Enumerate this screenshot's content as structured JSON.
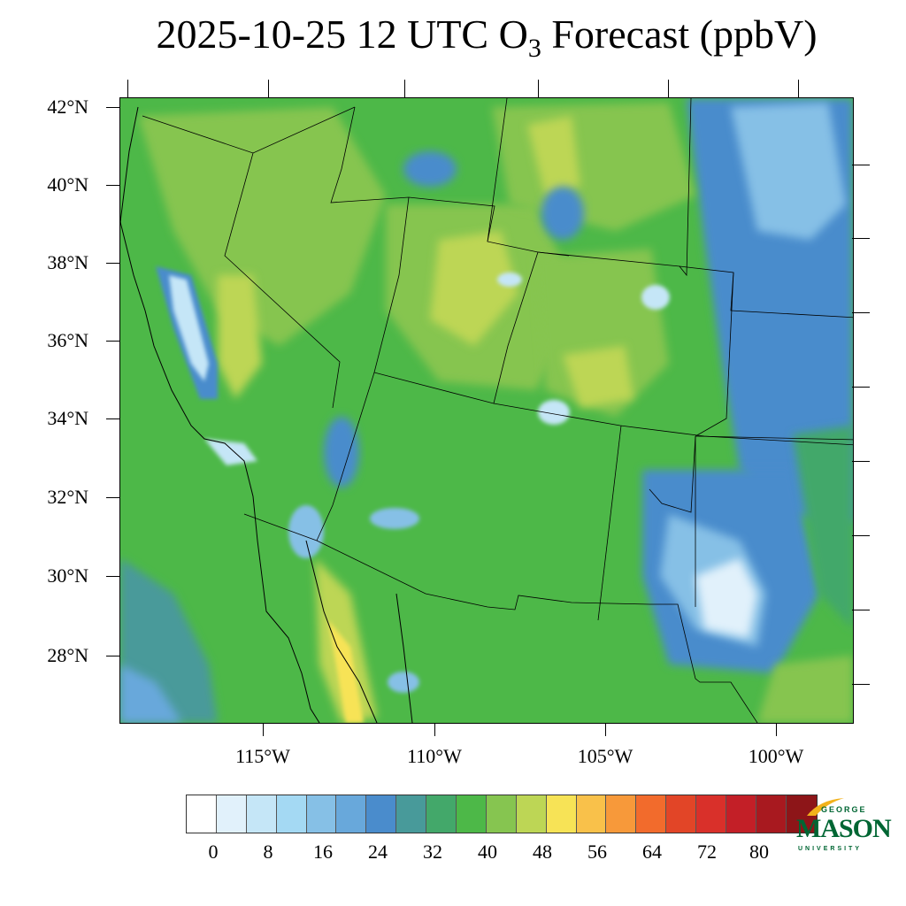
{
  "title": {
    "main": "2025-10-25 12 UTC O",
    "subscript": "3",
    "suffix": " Forecast (ppbV)"
  },
  "map": {
    "region": "Southwestern United States and northern Mexico",
    "latitude_labels": [
      "42°N",
      "40°N",
      "38°N",
      "36°N",
      "34°N",
      "32°N",
      "30°N",
      "28°N"
    ],
    "longitude_labels": [
      "115°W",
      "110°W",
      "105°W",
      "100°W"
    ]
  },
  "colorbar": {
    "colors": [
      "#ffffff",
      "#e1f1fb",
      "#c5e6f7",
      "#a4d9f3",
      "#86c0e6",
      "#68a8db",
      "#4a8ccc",
      "#489a9a",
      "#43a86a",
      "#4db848",
      "#86c550",
      "#bdd655",
      "#f7e356",
      "#f9c14a",
      "#f7993a",
      "#f26b2c",
      "#e24527",
      "#d9302a",
      "#c31f27",
      "#a8191f",
      "#8d1518"
    ],
    "labels": [
      "0",
      "8",
      "16",
      "24",
      "32",
      "40",
      "48",
      "56",
      "64",
      "72",
      "80"
    ]
  },
  "logo": {
    "line1": "GEORGE",
    "line2": "MASON",
    "line3": "UNIVERSITY",
    "color": "#006633"
  }
}
